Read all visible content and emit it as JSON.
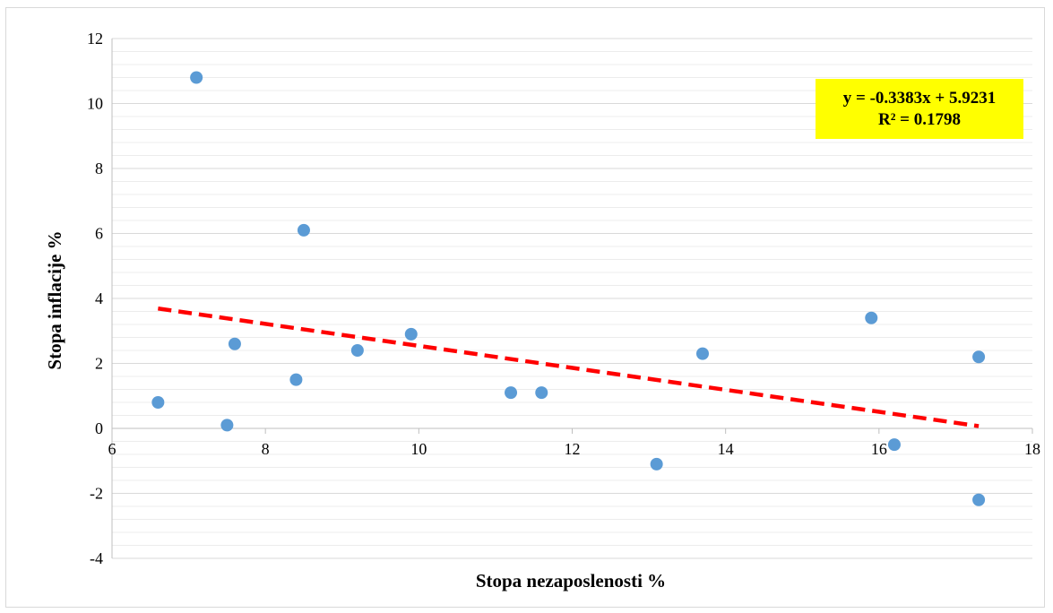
{
  "chart_data": {
    "type": "scatter",
    "xlabel": "Stopa nezaposlenosti %",
    "ylabel": "Stopa inflacije %",
    "xlim": [
      6,
      18
    ],
    "ylim": [
      -4,
      12
    ],
    "x_ticks": [
      6,
      8,
      10,
      12,
      14,
      16,
      18
    ],
    "y_ticks": [
      -4,
      -2,
      0,
      2,
      4,
      6,
      8,
      10,
      12
    ],
    "minor_y_step": 0.4,
    "grid": true,
    "points": [
      {
        "x": 6.6,
        "y": 0.8
      },
      {
        "x": 7.1,
        "y": 10.8
      },
      {
        "x": 7.5,
        "y": 0.1
      },
      {
        "x": 7.6,
        "y": 2.6
      },
      {
        "x": 8.4,
        "y": 1.5
      },
      {
        "x": 8.5,
        "y": 6.1
      },
      {
        "x": 9.2,
        "y": 2.4
      },
      {
        "x": 9.9,
        "y": 2.9
      },
      {
        "x": 11.2,
        "y": 1.1
      },
      {
        "x": 11.6,
        "y": 1.1
      },
      {
        "x": 13.1,
        "y": -1.1
      },
      {
        "x": 13.7,
        "y": 2.3
      },
      {
        "x": 15.9,
        "y": 3.4
      },
      {
        "x": 16.2,
        "y": -0.5
      },
      {
        "x": 17.3,
        "y": 2.2
      },
      {
        "x": 17.3,
        "y": -2.2
      }
    ],
    "trendline": {
      "slope": -0.3383,
      "intercept": 5.9231,
      "x_range": [
        6.6,
        17.3
      ],
      "color": "#ff0000",
      "style": "dashed"
    },
    "point_color": "#5b9bd5",
    "equation_lines": [
      "y = -0.3383x + 5.9231",
      "R² = 0.1798"
    ],
    "equation_box_color": "#ffff00"
  }
}
